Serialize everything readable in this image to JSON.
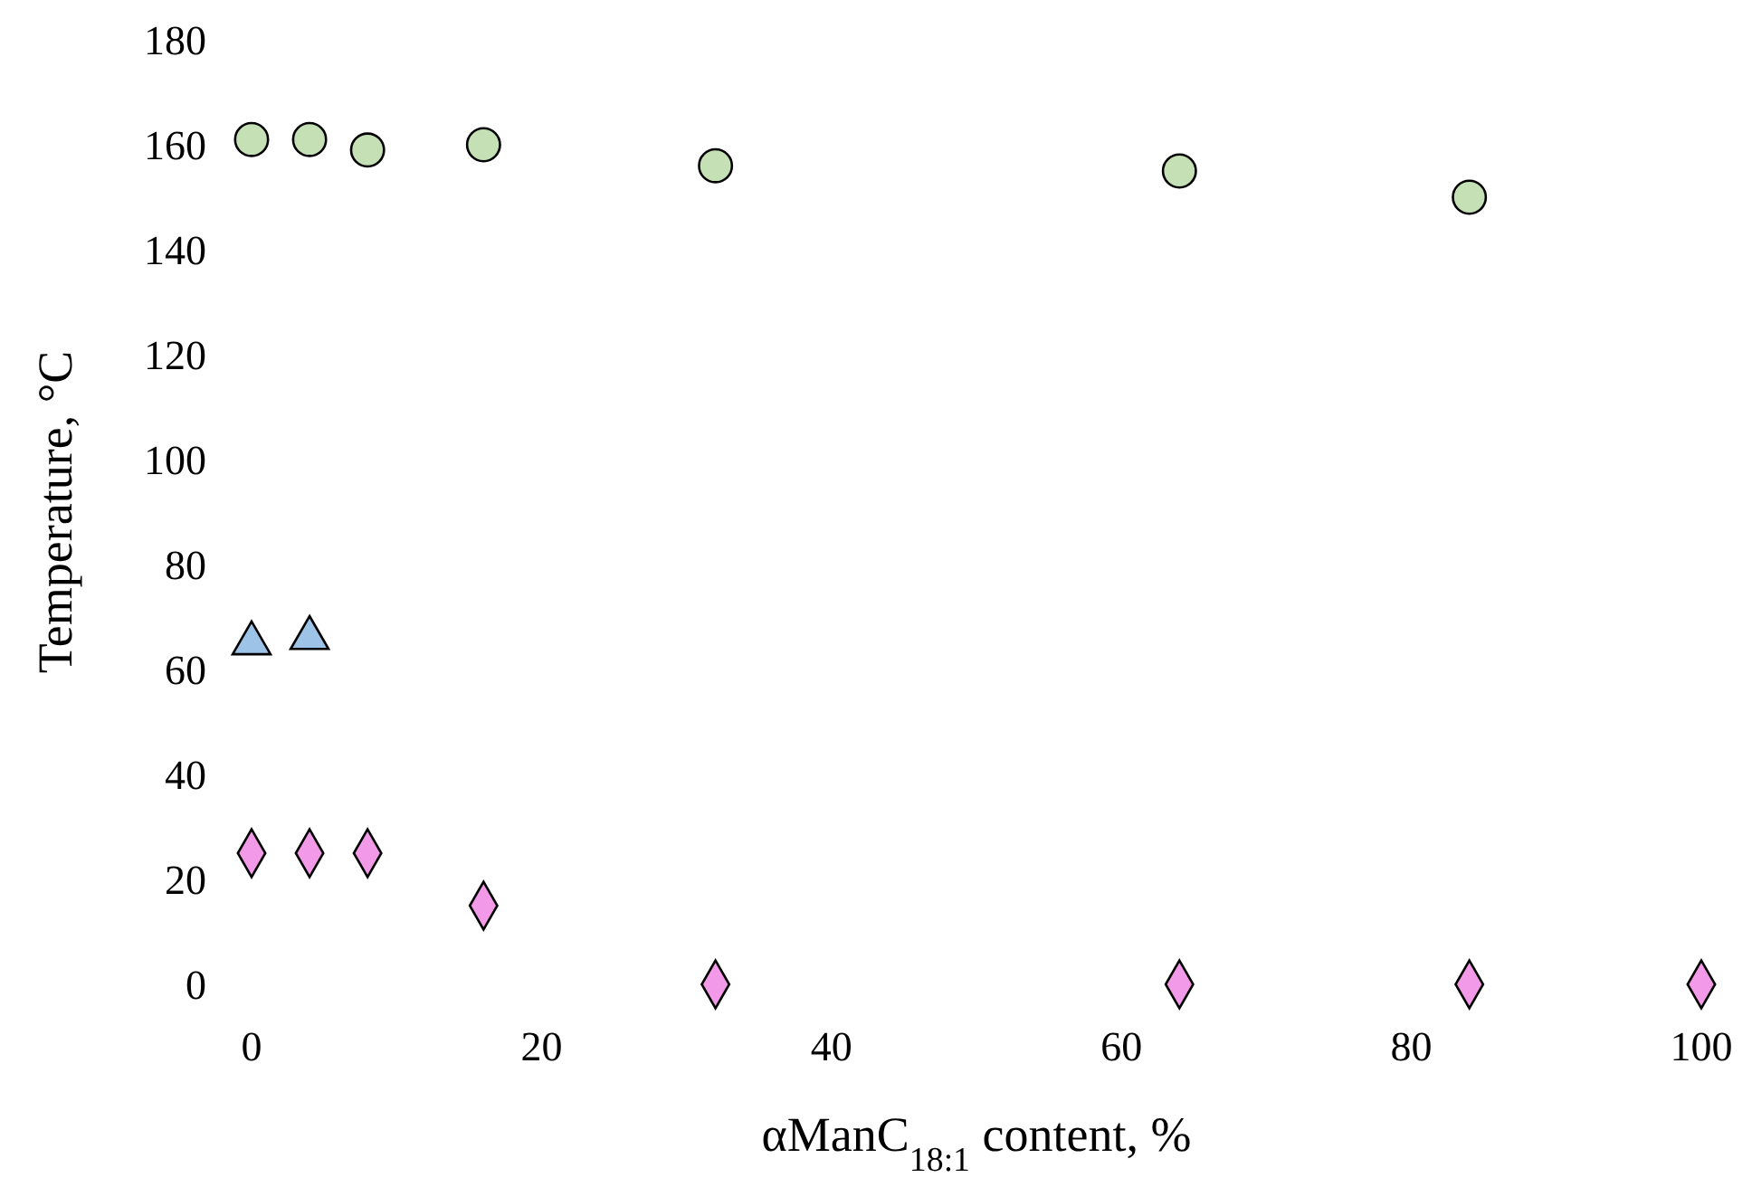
{
  "chart_data": {
    "type": "scatter",
    "xlabel": "αManC$_{18:1}$ content, %",
    "ylabel": "Temperature, °C",
    "xlim": [
      0,
      100
    ],
    "ylim": [
      0,
      180
    ],
    "xticks": [
      0,
      20,
      40,
      60,
      80,
      100
    ],
    "yticks": [
      0,
      20,
      40,
      60,
      80,
      100,
      120,
      140,
      160,
      180
    ],
    "grid": false,
    "series": [
      {
        "color": "#c5e0b4",
        "marker": "circle",
        "x": [
          0,
          4,
          8,
          16,
          32,
          64,
          84
        ],
        "values": [
          161,
          161,
          159,
          160,
          156,
          155,
          150
        ]
      },
      {
        "color": "#9dc3e6",
        "marker": "triangle",
        "x": [
          0,
          4
        ],
        "values": [
          65,
          66
        ]
      },
      {
        "color": "#f29ae8",
        "marker": "diamond",
        "x": [
          0,
          4,
          8,
          16,
          32,
          64,
          84,
          100
        ],
        "values": [
          25,
          25,
          25,
          15,
          0,
          0,
          0,
          0
        ]
      }
    ]
  }
}
